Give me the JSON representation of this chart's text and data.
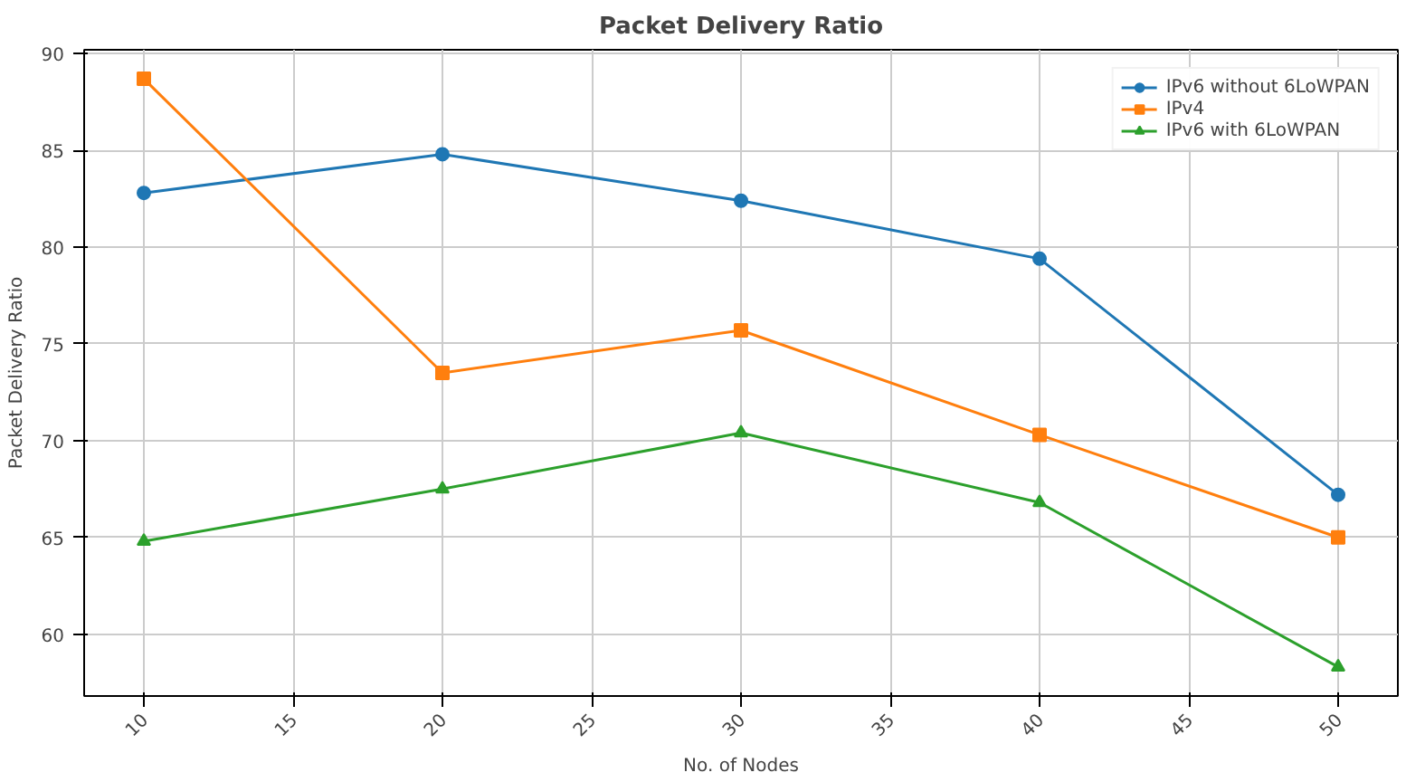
{
  "chart_data": {
    "type": "line",
    "title": "Packet Delivery Ratio",
    "xlabel": "No. of Nodes",
    "ylabel": "Packet Delivery Ratio",
    "x": [
      10,
      20,
      30,
      40,
      50
    ],
    "series": [
      {
        "name": "IPv6 without 6LoWPAN",
        "color": "#1f77b4",
        "marker": "circle",
        "values": [
          82.8,
          84.8,
          82.4,
          79.4,
          67.2
        ]
      },
      {
        "name": "IPv4",
        "color": "#ff7f0e",
        "marker": "square",
        "values": [
          88.7,
          73.5,
          75.7,
          70.3,
          65.0
        ]
      },
      {
        "name": "IPv6 with 6LoWPAN",
        "color": "#2ca02c",
        "marker": "triangle",
        "values": [
          64.8,
          67.5,
          70.4,
          66.8,
          58.3
        ]
      }
    ],
    "xlim": [
      8,
      52
    ],
    "xticks": [
      10,
      15,
      20,
      25,
      30,
      35,
      40,
      45,
      50
    ],
    "ylim": [
      56.8,
      90.2
    ],
    "yticks": [
      60,
      65,
      70,
      75,
      80,
      85,
      90
    ],
    "grid": true,
    "legend": "top right",
    "line_style": "solid"
  }
}
